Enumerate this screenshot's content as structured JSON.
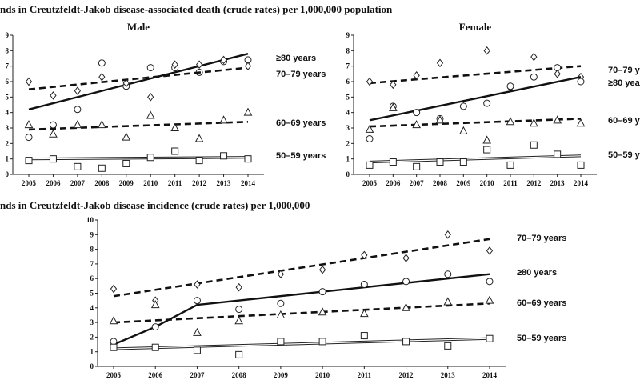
{
  "headings": {
    "death": "nds in Creutzfeldt-Jakob disease-associated death (crude rates) per 1,000,000 population",
    "incidence": "nds in Creutzfeldt-Jakob disease incidence (crude rates) per 1,000,000"
  },
  "chart_data": [
    {
      "id": "male",
      "type": "scatter",
      "title": "Male",
      "x": [
        2005,
        2006,
        2007,
        2008,
        2009,
        2010,
        2011,
        2012,
        2013,
        2014
      ],
      "ylim": [
        0,
        9
      ],
      "yticks": [
        0,
        1,
        2,
        3,
        4,
        5,
        6,
        7,
        8,
        9
      ],
      "series": [
        {
          "name": "≥80 years",
          "marker": "circle",
          "trend_style": "solid-thick",
          "values": [
            2.4,
            3.2,
            4.2,
            7.2,
            5.7,
            6.9,
            6.9,
            6.6,
            7.3,
            7.4
          ],
          "trend": [
            4.2,
            7.8
          ]
        },
        {
          "name": "70–79 years",
          "marker": "diamond",
          "trend_style": "dashed",
          "values": [
            6.0,
            5.1,
            5.4,
            6.3,
            5.9,
            5.0,
            7.1,
            7.1,
            7.4,
            7.0
          ],
          "trend": [
            5.5,
            6.9
          ]
        },
        {
          "name": "60–69 years",
          "marker": "triangle",
          "trend_style": "dashed",
          "values": [
            3.2,
            2.6,
            3.2,
            3.2,
            2.4,
            3.8,
            3.0,
            2.3,
            3.5,
            4.0
          ],
          "trend": [
            2.9,
            3.4
          ]
        },
        {
          "name": "50–59 years",
          "marker": "square",
          "trend_style": "double",
          "values": [
            0.9,
            1.0,
            0.5,
            0.4,
            0.7,
            1.1,
            1.5,
            0.9,
            1.2,
            1.0
          ],
          "trend": [
            1.0,
            1.1
          ]
        }
      ]
    },
    {
      "id": "female",
      "type": "scatter",
      "title": "Female",
      "x": [
        2005,
        2006,
        2007,
        2008,
        2009,
        2010,
        2011,
        2012,
        2013,
        2014
      ],
      "ylim": [
        0,
        9
      ],
      "yticks": [
        0,
        1,
        2,
        3,
        4,
        5,
        6,
        7,
        8,
        9
      ],
      "series": [
        {
          "name": "70–79 yea",
          "marker": "diamond",
          "trend_style": "dashed",
          "values": [
            6.0,
            5.8,
            6.4,
            7.2,
            4.4,
            8.0,
            5.6,
            7.6,
            6.5,
            6.3
          ],
          "trend": [
            5.9,
            7.0
          ]
        },
        {
          "name": "≥80 yea",
          "marker": "circle",
          "trend_style": "solid-thick",
          "values": [
            2.3,
            4.4,
            4.0,
            3.6,
            4.4,
            4.6,
            5.7,
            6.3,
            6.9,
            6.0
          ],
          "trend": [
            3.5,
            6.3
          ]
        },
        {
          "name": "60–69 yea",
          "marker": "triangle",
          "trend_style": "dashed",
          "values": [
            2.9,
            4.3,
            3.2,
            3.5,
            2.8,
            2.2,
            3.4,
            3.3,
            3.5,
            3.3
          ],
          "trend": [
            3.1,
            3.6
          ]
        },
        {
          "name": "50–59 yea",
          "marker": "square",
          "trend_style": "double",
          "values": [
            0.6,
            0.8,
            0.5,
            0.8,
            0.8,
            1.6,
            0.6,
            1.9,
            1.3,
            0.6
          ],
          "trend": [
            0.8,
            1.2
          ]
        }
      ]
    },
    {
      "id": "incidence",
      "type": "scatter",
      "title": "",
      "x": [
        2005,
        2006,
        2007,
        2008,
        2009,
        2010,
        2011,
        2012,
        2013,
        2014
      ],
      "ylim": [
        0,
        10
      ],
      "yticks": [
        0,
        1,
        2,
        3,
        4,
        5,
        6,
        7,
        8,
        9,
        10
      ],
      "series": [
        {
          "name": "70–79 years",
          "marker": "diamond",
          "trend_style": "dashed",
          "values": [
            5.3,
            4.5,
            5.6,
            5.4,
            6.3,
            6.6,
            7.6,
            7.4,
            9.0,
            7.9
          ],
          "trend": [
            4.8,
            8.7
          ]
        },
        {
          "name": "≥80 years",
          "marker": "circle",
          "trend_style": "solid-thick",
          "values": [
            1.7,
            2.7,
            4.5,
            3.9,
            4.3,
            5.1,
            5.6,
            5.8,
            6.3,
            5.8
          ],
          "trend_points": [
            [
              2005,
              1.5
            ],
            [
              2006,
              2.7
            ],
            [
              2007,
              4.2
            ],
            [
              2014,
              6.3
            ]
          ]
        },
        {
          "name": "60–69 years",
          "marker": "triangle",
          "trend_style": "dashed",
          "values": [
            3.1,
            4.2,
            2.3,
            3.1,
            3.5,
            3.7,
            3.6,
            4.0,
            4.4,
            4.5
          ],
          "trend": [
            3.0,
            4.3
          ]
        },
        {
          "name": "50–59 years",
          "marker": "square",
          "trend_style": "double",
          "values": [
            1.3,
            1.3,
            1.1,
            0.8,
            1.7,
            1.7,
            2.1,
            1.7,
            1.4,
            1.9
          ],
          "trend": [
            1.2,
            1.9
          ]
        }
      ]
    }
  ]
}
